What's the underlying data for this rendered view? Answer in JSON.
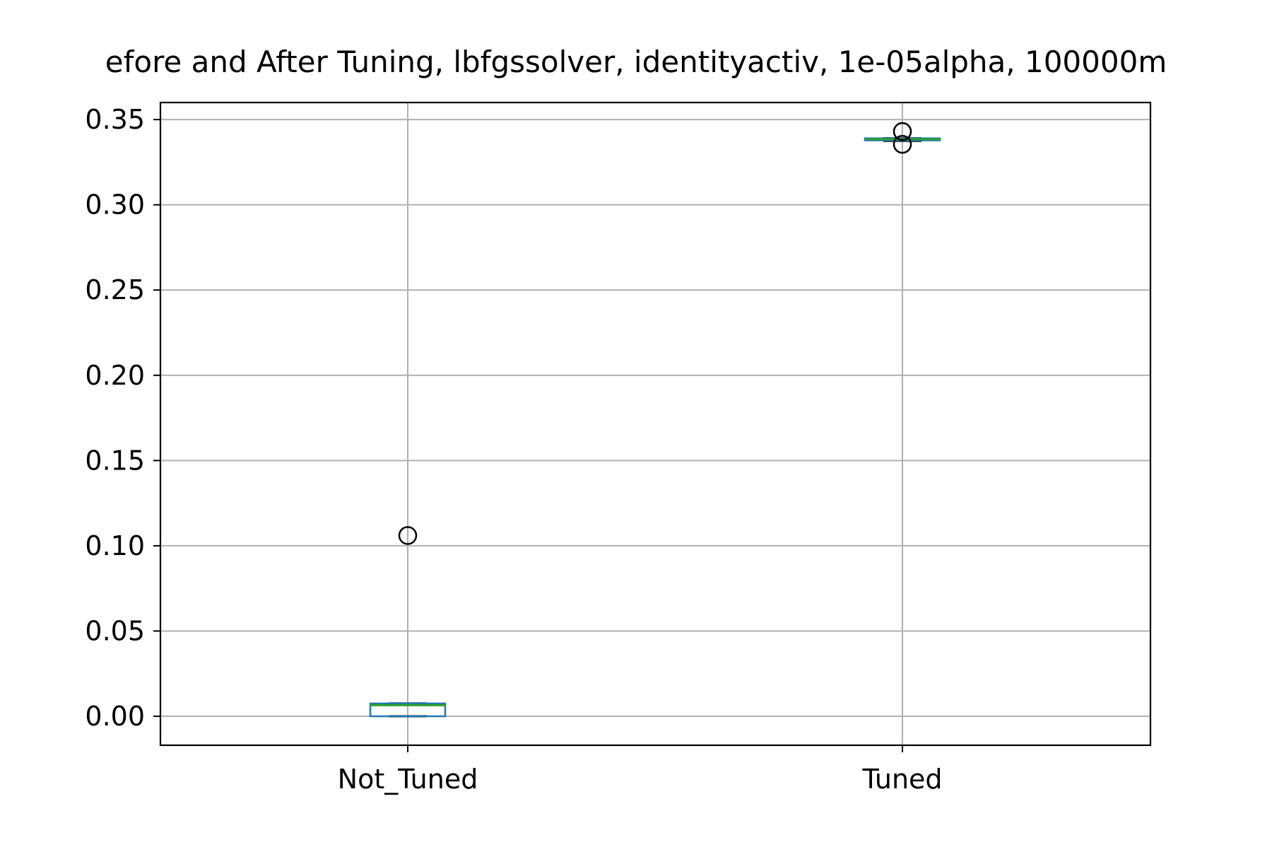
{
  "chart_data": {
    "type": "box",
    "title": "efore and After Tuning, lbfgssolver, identityactiv, 1e-05alpha, 100000m",
    "xlabel": "",
    "ylabel": "",
    "categories": [
      "Not_Tuned",
      "Tuned"
    ],
    "ylim": [
      -0.017,
      0.36
    ],
    "yticks": [
      0.0,
      0.05,
      0.1,
      0.15,
      0.2,
      0.25,
      0.3,
      0.35
    ],
    "ytick_labels": [
      "0.00",
      "0.05",
      "0.10",
      "0.15",
      "0.20",
      "0.25",
      "0.30",
      "0.35"
    ],
    "grid": true,
    "boxes": [
      {
        "category": "Not_Tuned",
        "whisker_low": 0.0,
        "q1": 0.0,
        "median": 0.0065,
        "q3": 0.0075,
        "whisker_high": 0.0075,
        "outliers": [
          0.106
        ]
      },
      {
        "category": "Tuned",
        "whisker_low": 0.3375,
        "q1": 0.3378,
        "median": 0.3385,
        "q3": 0.339,
        "whisker_high": 0.339,
        "outliers": [
          0.343,
          0.3355
        ]
      }
    ],
    "colors": {
      "box": "#1f77b4",
      "median": "#2ca02c",
      "whisker": "#000000",
      "grid": "#b0b0b0",
      "outlier": "#000000"
    }
  }
}
